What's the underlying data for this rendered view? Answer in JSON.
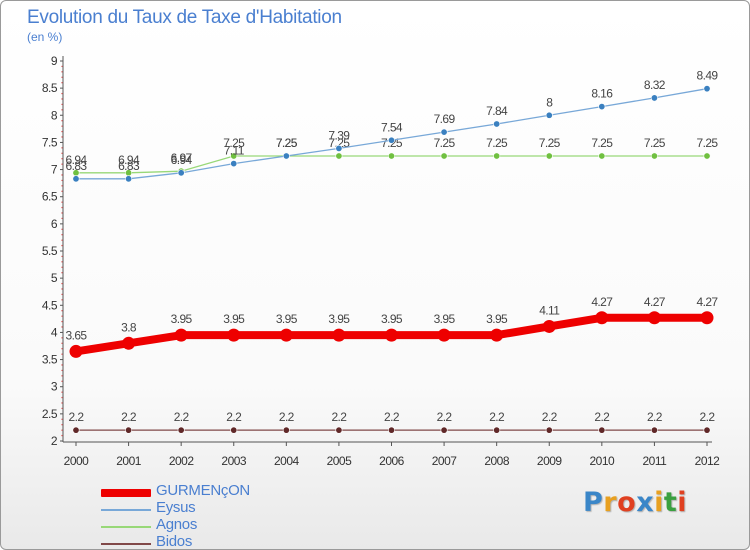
{
  "title": "Evolution du Taux de Taxe d'Habitation",
  "unit": "(en %)",
  "brand": {
    "text": "Proxiti",
    "letter_colors": [
      "#3a86c8",
      "#e8a020",
      "#e04020",
      "#3a86c8",
      "#e8a020",
      "#3aa040",
      "#e04020"
    ]
  },
  "chart_data": {
    "type": "line",
    "x": [
      "2000",
      "2001",
      "2002",
      "2003",
      "2004",
      "2005",
      "2006",
      "2007",
      "2008",
      "2009",
      "2010",
      "2011",
      "2012"
    ],
    "ylim": [
      2,
      9
    ],
    "yticks": [
      "2",
      "2.5",
      "3",
      "3.5",
      "4",
      "4.5",
      "5",
      "5.5",
      "6",
      "6.5",
      "7",
      "7.5",
      "8",
      "8.5",
      "9"
    ],
    "grid": false,
    "legend_position": "bottom-left",
    "series": [
      {
        "name": "GURMENçON",
        "color": "#ee0000",
        "thick": true,
        "values": [
          3.65,
          3.8,
          3.95,
          3.95,
          3.95,
          3.95,
          3.95,
          3.95,
          3.95,
          4.11,
          4.27,
          4.27,
          4.27
        ],
        "labels": [
          "3.65",
          "3.8",
          "3.95",
          "3.95",
          "3.95",
          "3.95",
          "3.95",
          "3.95",
          "3.95",
          "4.11",
          "4.27",
          "4.27",
          "4.27"
        ]
      },
      {
        "name": "Eysus",
        "color": "#78a8d8",
        "marker": "#3a80c0",
        "values": [
          6.83,
          6.83,
          6.94,
          7.11,
          7.25,
          7.39,
          7.54,
          7.69,
          7.84,
          8,
          8.16,
          8.32,
          8.49
        ],
        "labels": [
          "6.83",
          "6.83",
          "6.94",
          "7.11",
          "7.25",
          "7.39",
          "7.54",
          "7.69",
          "7.84",
          "8",
          "8.16",
          "8.32",
          "8.49"
        ]
      },
      {
        "name": "Agnos",
        "color": "#98d878",
        "marker": "#70c040",
        "values": [
          6.94,
          6.94,
          6.97,
          7.25,
          7.25,
          7.25,
          7.25,
          7.25,
          7.25,
          7.25,
          7.25,
          7.25,
          7.25
        ],
        "labels": [
          "6.94",
          "6.94",
          "6.97",
          "7.25",
          "7.25",
          "7.25",
          "7.25",
          "7.25",
          "7.25",
          "7.25",
          "7.25",
          "7.25",
          "7.25"
        ]
      },
      {
        "name": "Bidos",
        "color": "#804848",
        "marker": "#602828",
        "values": [
          2.2,
          2.2,
          2.2,
          2.2,
          2.2,
          2.2,
          2.2,
          2.2,
          2.2,
          2.2,
          2.2,
          2.2,
          2.2
        ],
        "labels": [
          "2.2",
          "2.2",
          "2.2",
          "2.2",
          "2.2",
          "2.2",
          "2.2",
          "2.2",
          "2.2",
          "2.2",
          "2.2",
          "2.2",
          "2.2"
        ]
      }
    ]
  }
}
